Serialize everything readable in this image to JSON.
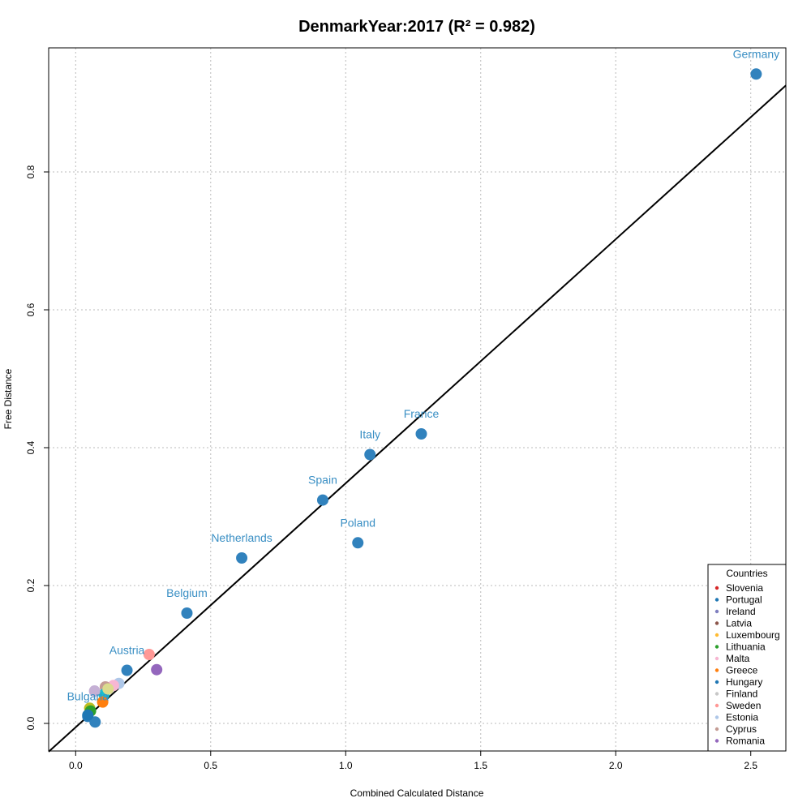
{
  "chart_data": {
    "type": "scatter",
    "title": "DenmarkYear:2017 (R² = 0.982)",
    "xlabel": "Combined Calculated Distance",
    "ylabel": "Free Distance",
    "xlim": [
      -0.1,
      2.63
    ],
    "ylim": [
      -0.04,
      0.98
    ],
    "x_ticks": [
      0.0,
      0.5,
      1.0,
      1.5,
      2.0,
      2.5
    ],
    "x_tick_labels": [
      "0.0",
      "0.5",
      "1.0",
      "1.5",
      "2.0",
      "2.5"
    ],
    "y_ticks": [
      0.0,
      0.2,
      0.4,
      0.6,
      0.8
    ],
    "y_tick_labels": [
      "0.0",
      "0.2",
      "0.4",
      "0.6",
      "0.8"
    ],
    "grid": true,
    "label_color": "#3a8fc4",
    "regression_line": {
      "slope": 0.354,
      "intercept": -0.0056,
      "color": "#000000"
    },
    "points": [
      {
        "label": "Germany",
        "x": 2.52,
        "y": 0.942,
        "color": "#3182bd"
      },
      {
        "label": "France",
        "x": 1.28,
        "y": 0.42,
        "color": "#3182bd"
      },
      {
        "label": "Italy",
        "x": 1.09,
        "y": 0.39,
        "color": "#3182bd"
      },
      {
        "label": "Spain",
        "x": 0.915,
        "y": 0.324,
        "color": "#3182bd"
      },
      {
        "label": "Poland",
        "x": 1.045,
        "y": 0.262,
        "color": "#3182bd"
      },
      {
        "label": "Netherlands",
        "x": 0.615,
        "y": 0.24,
        "color": "#3182bd"
      },
      {
        "label": "Belgium",
        "x": 0.412,
        "y": 0.16,
        "color": "#3182bd"
      },
      {
        "label": "Austria",
        "x": 0.19,
        "y": 0.077,
        "color": "#3182bd"
      },
      {
        "label": "Bulgaria",
        "x": 0.045,
        "y": 0.01,
        "color": "#3182bd"
      },
      {
        "label": "",
        "x": 0.072,
        "y": 0.002,
        "color": "#3182bd"
      },
      {
        "label": "",
        "x": 0.3,
        "y": 0.078,
        "color": "#9467bd"
      },
      {
        "label": "",
        "x": 0.272,
        "y": 0.1,
        "color": "#ff9896"
      },
      {
        "label": "",
        "x": 0.16,
        "y": 0.058,
        "color": "#aec7e8"
      },
      {
        "label": "",
        "x": 0.14,
        "y": 0.055,
        "color": "#f7b6d2"
      },
      {
        "label": "",
        "x": 0.11,
        "y": 0.053,
        "color": "#c49c94"
      },
      {
        "label": "",
        "x": 0.105,
        "y": 0.042,
        "color": "#17becf"
      },
      {
        "label": "",
        "x": 0.12,
        "y": 0.05,
        "color": "#dbdb8d"
      },
      {
        "label": "",
        "x": 0.07,
        "y": 0.047,
        "color": "#c5b0d5"
      },
      {
        "label": "",
        "x": 0.1,
        "y": 0.031,
        "color": "#ff7f0e"
      },
      {
        "label": "",
        "x": 0.052,
        "y": 0.022,
        "color": "#bcbd22"
      },
      {
        "label": "",
        "x": 0.055,
        "y": 0.018,
        "color": "#2ca02c"
      },
      {
        "label": "",
        "x": 0.045,
        "y": 0.012,
        "color": "#1f77b4"
      }
    ],
    "legend": {
      "title": "Countries",
      "placement": "bottom-right",
      "entries": [
        {
          "name": "Slovenia",
          "color": "#d62728"
        },
        {
          "name": "Portugal",
          "color": "#1f77b4"
        },
        {
          "name": "Ireland",
          "color": "#7f7fbf"
        },
        {
          "name": "Latvia",
          "color": "#8c564b"
        },
        {
          "name": "Luxembourg",
          "color": "#ffbb33"
        },
        {
          "name": "Lithuania",
          "color": "#2ca02c"
        },
        {
          "name": "Malta",
          "color": "#f7b6d2"
        },
        {
          "name": "Greece",
          "color": "#ff7f0e"
        },
        {
          "name": "Hungary",
          "color": "#1f77b4"
        },
        {
          "name": "Finland",
          "color": "#c7c7c7"
        },
        {
          "name": "Sweden",
          "color": "#ff9896"
        },
        {
          "name": "Estonia",
          "color": "#aec7e8"
        },
        {
          "name": "Cyprus",
          "color": "#c49c94"
        },
        {
          "name": "Romania",
          "color": "#9467bd"
        }
      ]
    }
  }
}
